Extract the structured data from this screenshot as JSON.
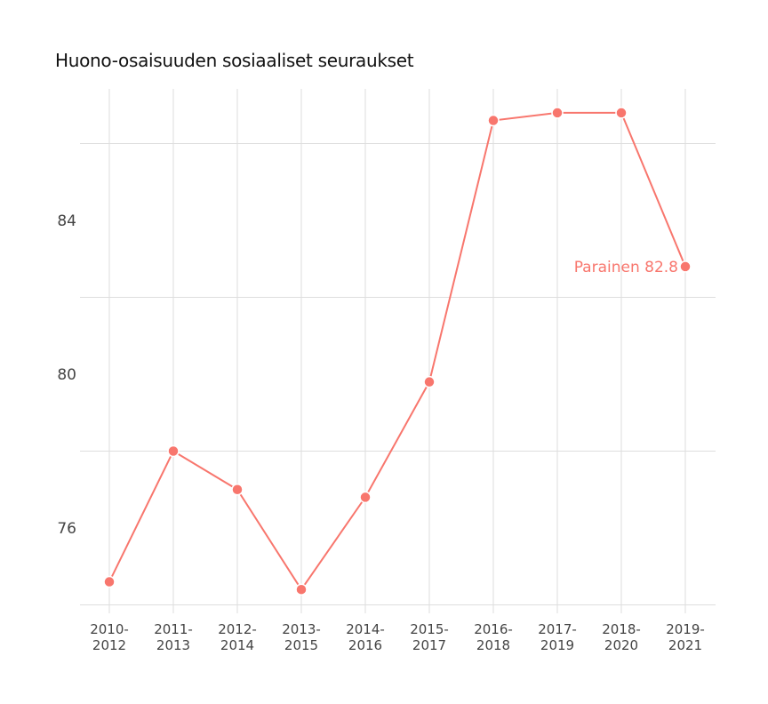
{
  "chart_data": {
    "type": "line",
    "title": "Huono-osaisuuden sosiaaliset seuraukset",
    "xlabel": "",
    "ylabel": "",
    "categories": [
      "2010-2012",
      "2011-2013",
      "2012-2014",
      "2013-2015",
      "2014-2016",
      "2015-2017",
      "2016-2018",
      "2017-2019",
      "2018-2020",
      "2019-2021"
    ],
    "category_lines": [
      [
        "2010-",
        "2012"
      ],
      [
        "2011-",
        "2013"
      ],
      [
        "2012-",
        "2014"
      ],
      [
        "2013-",
        "2015"
      ],
      [
        "2014-",
        "2016"
      ],
      [
        "2015-",
        "2017"
      ],
      [
        "2016-",
        "2018"
      ],
      [
        "2017-",
        "2019"
      ],
      [
        "2018-",
        "2020"
      ],
      [
        "2019-",
        "2021"
      ]
    ],
    "series": [
      {
        "name": "Parainen",
        "color": "#f8766d",
        "values": [
          74.6,
          78.0,
          77.0,
          74.4,
          76.8,
          79.8,
          86.6,
          86.8,
          86.8,
          82.8
        ]
      }
    ],
    "end_label": "Parainen 82.8",
    "yticks": [
      76,
      80,
      84
    ],
    "ylim": [
      73.8,
      87.8
    ],
    "grid": true,
    "legend": "none"
  }
}
